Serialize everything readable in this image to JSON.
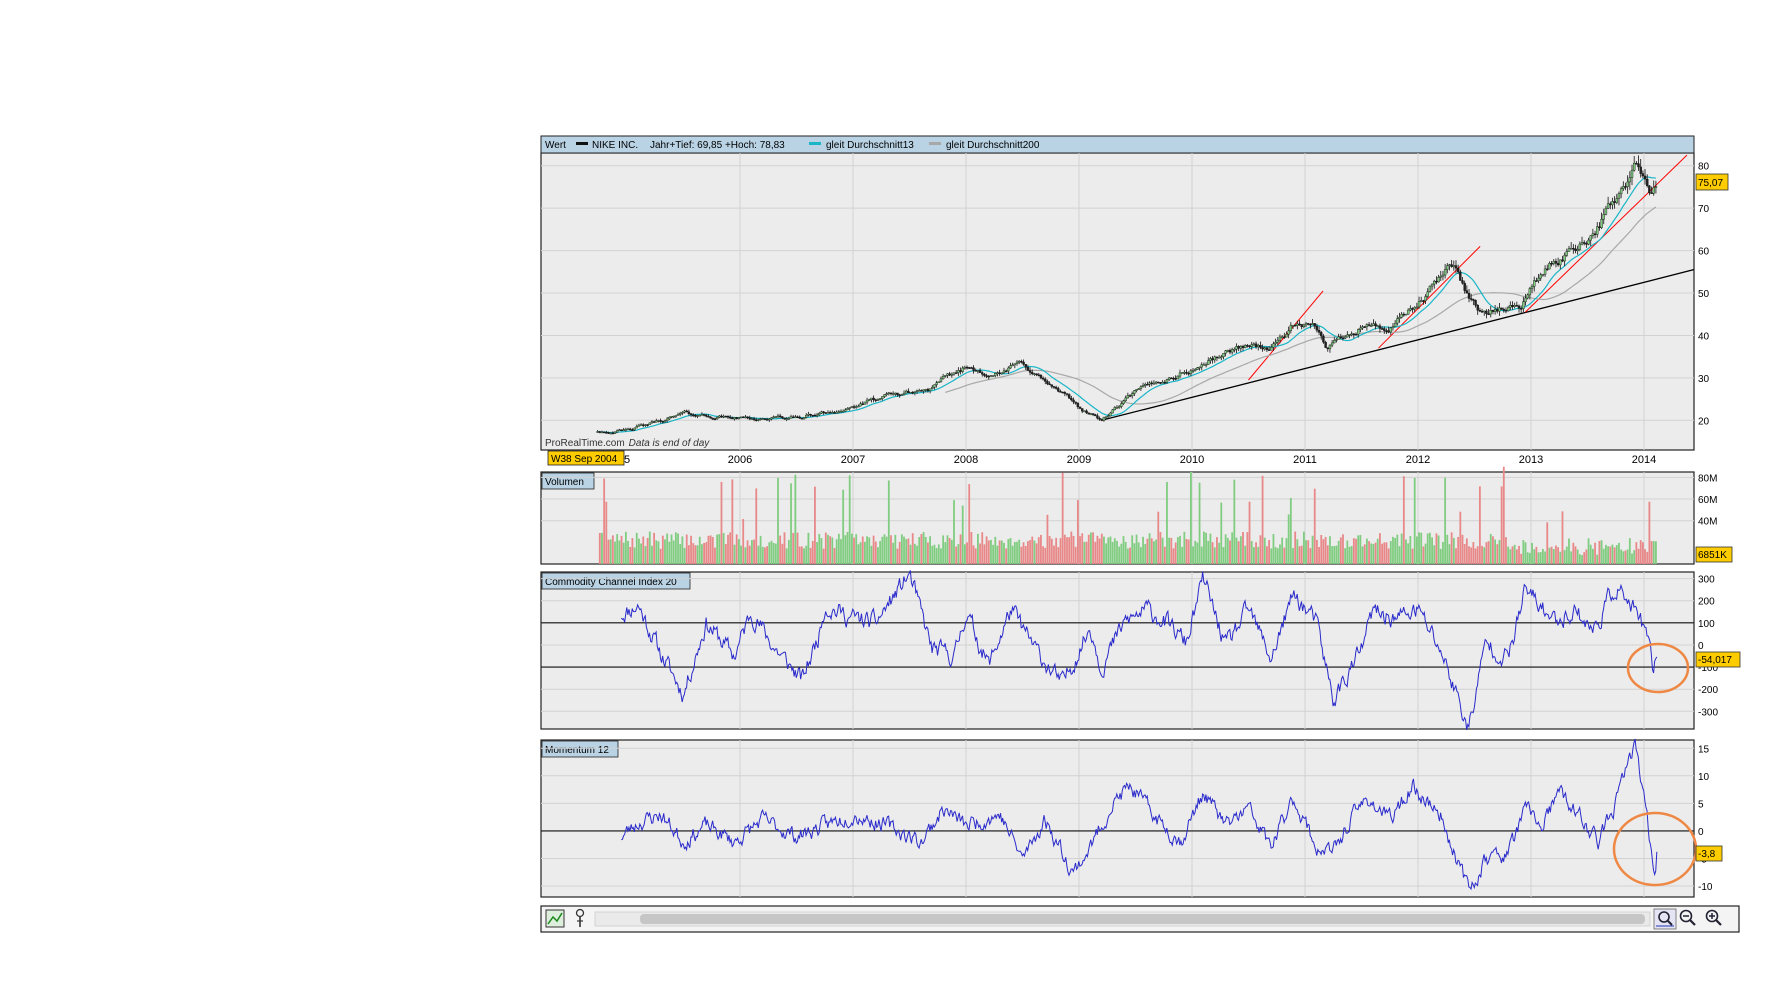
{
  "chart_data": [
    {
      "type": "candlestick",
      "panel": "price",
      "legend": {
        "label": "Wert",
        "series_name": "NIKE INC.",
        "range_text": "Jahr+Tief: 69,85 +Hoch: 78,83",
        "ma13": "gleit Durchschnitt13",
        "ma200": "gleit Durchschnitt200"
      },
      "watermark": "ProRealTime.com",
      "watermark_note": "Data is end of day",
      "x_start_label": "W38 Sep 2004",
      "x_first_partial": "5",
      "years": [
        "2006",
        "2007",
        "2008",
        "2009",
        "2010",
        "2011",
        "2012",
        "2013",
        "2014"
      ],
      "yticks": [
        20,
        30,
        40,
        50,
        60,
        70,
        80
      ],
      "ylim": [
        13,
        83
      ],
      "last_value": 75.07,
      "last_value_label": "75,07",
      "anchors": [
        [
          2005.0,
          17.5
        ],
        [
          2005.5,
          21.5
        ],
        [
          2006.0,
          20.5
        ],
        [
          2006.5,
          20.5
        ],
        [
          2006.9,
          22.5
        ],
        [
          2007.3,
          25.5
        ],
        [
          2007.7,
          27.5
        ],
        [
          2008.0,
          32.5
        ],
        [
          2008.3,
          31
        ],
        [
          2008.5,
          33.5
        ],
        [
          2008.75,
          28
        ],
        [
          2009.0,
          23
        ],
        [
          2009.2,
          20
        ],
        [
          2009.5,
          26.5
        ],
        [
          2009.8,
          30
        ],
        [
          2010.0,
          32
        ],
        [
          2010.3,
          36
        ],
        [
          2010.5,
          38
        ],
        [
          2010.7,
          37
        ],
        [
          2010.9,
          42.5
        ],
        [
          2011.1,
          41
        ],
        [
          2011.2,
          37
        ],
        [
          2011.5,
          43
        ],
        [
          2011.75,
          41.5
        ],
        [
          2012.0,
          47
        ],
        [
          2012.25,
          55
        ],
        [
          2012.35,
          56
        ],
        [
          2012.45,
          49
        ],
        [
          2012.6,
          45
        ],
        [
          2012.9,
          47
        ],
        [
          2013.1,
          55
        ],
        [
          2013.3,
          59
        ],
        [
          2013.5,
          63.5
        ],
        [
          2013.7,
          70
        ],
        [
          2013.9,
          78
        ],
        [
          2013.95,
          80
        ],
        [
          2014.05,
          72
        ],
        [
          2014.12,
          75.07
        ]
      ],
      "trendlines": [
        {
          "color": "#000000",
          "from": [
            2009.2,
            20
          ],
          "to": [
            2014.44,
            55.5
          ]
        },
        {
          "color": "#ff0000",
          "from": [
            2010.5,
            29.5
          ],
          "to": [
            2011.16,
            50.5
          ]
        },
        {
          "color": "#ff0000",
          "from": [
            2011.65,
            37
          ],
          "to": [
            2012.55,
            61
          ]
        },
        {
          "color": "#ff0000",
          "from": [
            2012.95,
            45.5
          ],
          "to": [
            2014.38,
            82.5
          ]
        }
      ]
    },
    {
      "type": "bar",
      "panel": "volume",
      "title": "Volumen",
      "yticks": [
        40,
        60,
        80
      ],
      "ytick_labels": [
        "40M",
        "60M",
        "80M"
      ],
      "ylim": [
        0,
        85
      ],
      "last_value_label": "6851K"
    },
    {
      "type": "line",
      "panel": "cci",
      "title": "Commodity Channel Index 20",
      "yticks": [
        300,
        200,
        100,
        0,
        -100,
        -200,
        -300
      ],
      "ylim": [
        -380,
        330
      ],
      "reference_lines": [
        100,
        -100
      ],
      "last_value": -54.017,
      "last_value_label": "-54,017",
      "anchors": [
        [
          2004.95,
          140
        ],
        [
          2005.1,
          180
        ],
        [
          2005.3,
          -40
        ],
        [
          2005.5,
          -220
        ],
        [
          2005.7,
          100
        ],
        [
          2005.95,
          -50
        ],
        [
          2006.1,
          150
        ],
        [
          2006.3,
          -10
        ],
        [
          2006.55,
          -160
        ],
        [
          2006.7,
          50
        ],
        [
          2006.75,
          180
        ],
        [
          2007.0,
          120
        ],
        [
          2007.2,
          100
        ],
        [
          2007.5,
          320
        ],
        [
          2007.7,
          -20
        ],
        [
          2007.9,
          -50
        ],
        [
          2008.0,
          150
        ],
        [
          2008.2,
          -90
        ],
        [
          2008.4,
          160
        ],
        [
          2008.6,
          -10
        ],
        [
          2008.85,
          -180
        ],
        [
          2009.1,
          80
        ],
        [
          2009.2,
          -100
        ],
        [
          2009.4,
          100
        ],
        [
          2009.6,
          160
        ],
        [
          2009.75,
          110
        ],
        [
          2009.95,
          10
        ],
        [
          2010.1,
          300
        ],
        [
          2010.3,
          -10
        ],
        [
          2010.5,
          160
        ],
        [
          2010.7,
          -60
        ],
        [
          2010.9,
          230
        ],
        [
          2011.1,
          100
        ],
        [
          2011.25,
          -250
        ],
        [
          2011.5,
          -20
        ],
        [
          2011.6,
          150
        ],
        [
          2011.8,
          120
        ],
        [
          2012.0,
          160
        ],
        [
          2012.2,
          -20
        ],
        [
          2012.45,
          -380
        ],
        [
          2012.6,
          10
        ],
        [
          2012.8,
          -60
        ],
        [
          2012.95,
          250
        ],
        [
          2013.2,
          110
        ],
        [
          2013.4,
          160
        ],
        [
          2013.55,
          60
        ],
        [
          2013.75,
          270
        ],
        [
          2013.9,
          160
        ],
        [
          2014.0,
          80
        ],
        [
          2014.08,
          -110
        ],
        [
          2014.12,
          -54
        ]
      ]
    },
    {
      "type": "line",
      "panel": "momentum",
      "title": "Momentum 12",
      "yticks": [
        15,
        10,
        5,
        0,
        -5,
        -10
      ],
      "ylim": [
        -12,
        16.5
      ],
      "reference_lines": [
        0
      ],
      "last_value": -3.8,
      "last_value_label": "-3,8",
      "anchors": [
        [
          2004.95,
          -1
        ],
        [
          2005.1,
          1.5
        ],
        [
          2005.3,
          3
        ],
        [
          2005.5,
          -2
        ],
        [
          2005.7,
          1
        ],
        [
          2005.95,
          -2
        ],
        [
          2006.2,
          2
        ],
        [
          2006.5,
          -1
        ],
        [
          2006.75,
          1
        ],
        [
          2007.0,
          3
        ],
        [
          2007.3,
          1
        ],
        [
          2007.6,
          -2
        ],
        [
          2007.8,
          4
        ],
        [
          2008.0,
          1
        ],
        [
          2008.3,
          3
        ],
        [
          2008.5,
          -5
        ],
        [
          2008.7,
          2
        ],
        [
          2008.95,
          -7.5
        ],
        [
          2009.1,
          -3
        ],
        [
          2009.3,
          5
        ],
        [
          2009.45,
          8
        ],
        [
          2009.7,
          2
        ],
        [
          2009.9,
          -2
        ],
        [
          2010.1,
          7
        ],
        [
          2010.3,
          1
        ],
        [
          2010.5,
          4
        ],
        [
          2010.7,
          -3
        ],
        [
          2010.9,
          6
        ],
        [
          2011.1,
          -3
        ],
        [
          2011.25,
          -4
        ],
        [
          2011.4,
          2
        ],
        [
          2011.55,
          6
        ],
        [
          2011.75,
          2
        ],
        [
          2011.95,
          8
        ],
        [
          2012.2,
          3
        ],
        [
          2012.45,
          -11
        ],
        [
          2012.6,
          -5
        ],
        [
          2012.8,
          -4
        ],
        [
          2012.95,
          4
        ],
        [
          2013.1,
          1
        ],
        [
          2013.25,
          7
        ],
        [
          2013.45,
          2
        ],
        [
          2013.6,
          -2
        ],
        [
          2013.75,
          5
        ],
        [
          2013.92,
          16
        ],
        [
          2014.0,
          6
        ],
        [
          2014.08,
          -6
        ],
        [
          2014.1,
          -7
        ],
        [
          2014.12,
          -3.8
        ]
      ]
    }
  ],
  "toolbar": {
    "icons": [
      "chart-settings-icon",
      "indicator-icon"
    ],
    "zoom_icons": [
      "zoom-fit-icon",
      "zoom-out-icon",
      "zoom-in-icon"
    ]
  },
  "colors": {
    "header_bg": "#b9d3e4",
    "panel_bg": "#ececec",
    "grid": "#d2d2d2",
    "up": "#80cc80",
    "down": "#e88888",
    "line": "#2a2acc",
    "ma13": "#19b6c8",
    "ma200": "#a8a8a8",
    "marker": "#ffcc00",
    "circle": "#ee8844"
  }
}
